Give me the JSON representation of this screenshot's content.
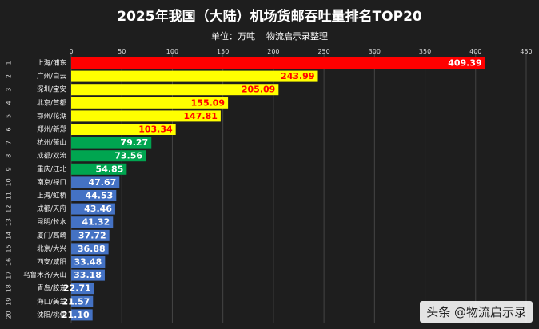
{
  "chart_data": {
    "type": "bar",
    "orientation": "horizontal",
    "title": "2025年我国（大陆）机场货邮吞吐量排名TOP20",
    "subtitle": "单位：万吨    物流启示录整理",
    "xlim": [
      0,
      450
    ],
    "ticks": [
      0,
      50,
      100,
      150,
      200,
      250,
      300,
      350,
      400,
      450
    ],
    "ranks": [
      "1",
      "2",
      "3",
      "4",
      "5",
      "6",
      "7",
      "8",
      "9",
      "10",
      "11",
      "12",
      "13",
      "14",
      "15",
      "16",
      "17",
      "18",
      "19",
      "20"
    ],
    "categories": [
      "上海/浦东",
      "广州/白云",
      "深圳/宝安",
      "北京/首都",
      "鄂州/花湖",
      "郑州/新郑",
      "杭州/萧山",
      "成都/双流",
      "重庆/江北",
      "南京/禄口",
      "上海/虹桥",
      "成都/天府",
      "昆明/长水",
      "厦门/高崎",
      "北京/大兴",
      "西安/咸阳",
      "乌鲁木齐/天山",
      "青岛/胶东",
      "海口/美兰",
      "沈阳/桃仙"
    ],
    "values": [
      409.39,
      243.99,
      205.09,
      155.09,
      147.81,
      103.34,
      79.27,
      73.56,
      54.85,
      47.67,
      44.53,
      43.46,
      41.32,
      37.72,
      36.88,
      33.48,
      33.18,
      22.71,
      21.57,
      21.1
    ],
    "labels": [
      "409.39",
      "243.99",
      "205.09",
      "155.09",
      "147.81",
      "103.34",
      "79.27",
      "73.56",
      "54.85",
      "47.67",
      "44.53",
      "43.46",
      "41.32",
      "37.72",
      "36.88",
      "33.48",
      "33.18",
      "22.71",
      "21.57",
      "21.10"
    ],
    "bar_colors": [
      "#ff0000",
      "#ffff00",
      "#ffff00",
      "#ffff00",
      "#ffff00",
      "#ffff00",
      "#00a550",
      "#00a550",
      "#00a550",
      "#4472c4",
      "#4472c4",
      "#4472c4",
      "#4472c4",
      "#4472c4",
      "#4472c4",
      "#4472c4",
      "#4472c4",
      "#4472c4",
      "#4472c4",
      "#4472c4"
    ],
    "label_colors": [
      "#ffffff",
      "#ff0000",
      "#ff0000",
      "#ff0000",
      "#ff0000",
      "#ff0000",
      "#ffffff",
      "#ffffff",
      "#ffffff",
      "#ffffff",
      "#ffffff",
      "#ffffff",
      "#ffffff",
      "#ffffff",
      "#ffffff",
      "#ffffff",
      "#ffffff",
      "#ffffff",
      "#ffffff",
      "#ffffff"
    ],
    "grid": true
  },
  "watermark": "头条 @物流启示录"
}
